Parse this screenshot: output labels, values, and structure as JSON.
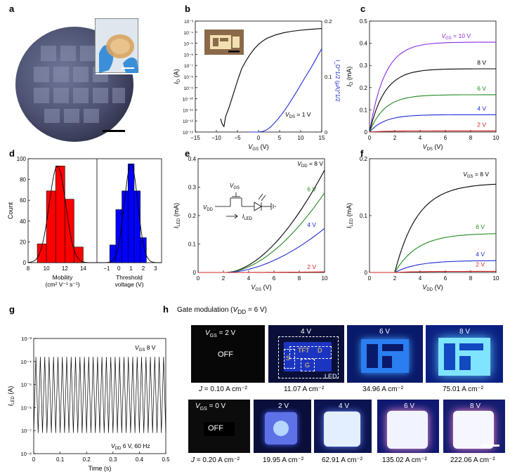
{
  "labels": {
    "a": "a",
    "b": "b",
    "c": "c",
    "d": "d",
    "e": "e",
    "f": "f",
    "g": "g",
    "h": "h"
  },
  "panel_h": {
    "title": "Gate modulation (V_DD = 6 V)",
    "title_pre": "Gate modulation (",
    "title_v": "V",
    "title_sub": "DD",
    "title_post": " = 6 V)",
    "row1": {
      "vgs_prefix": "V",
      "vgs_sub": "GS",
      "vgs_first": " = 2 V",
      "tiles": [
        "OFF",
        "4 V",
        "6 V",
        "8 V"
      ],
      "j_prefix": "J",
      "j": [
        "= 0.10 A cm⁻²",
        "11.07 A cm⁻²",
        "34.96 A cm⁻²",
        "75.01 A cm⁻²"
      ],
      "overlay": {
        "tft": "TFT",
        "d": "D",
        "s": "S",
        "g": "G",
        "led": "LED"
      }
    },
    "row2": {
      "vgs_first": " = 0 V",
      "tiles": [
        "OFF",
        "2 V",
        "4 V",
        "6 V",
        "8 V"
      ],
      "j": [
        "= 0.20 A cm⁻²",
        "19.95 A cm⁻²",
        "62.91 A cm⁻²",
        "135.02 A cm⁻²",
        "222.06 A cm⁻²"
      ]
    }
  },
  "chart_data": [
    {
      "panel": "b",
      "type": "line",
      "xlabel": "V_GS (V)",
      "ylabel": "I_D (A)",
      "ylabel2": "I_D^1/2 (µA)^1/2",
      "xlim": [
        -15,
        15
      ],
      "ylim_log": [
        -13,
        -3
      ],
      "y2lim": [
        0,
        0.2
      ],
      "xticks": [
        "−15",
        "−10",
        "−5",
        "0",
        "5",
        "10",
        "15"
      ],
      "yticks": [
        "10⁻³",
        "10⁻⁴",
        "10⁻⁵",
        "10⁻⁶",
        "10⁻⁷",
        "10⁻⁸",
        "10⁻⁹",
        "10⁻¹⁰",
        "10⁻¹¹",
        "10⁻¹²",
        "10⁻¹³"
      ],
      "y2ticks": [
        "0.2",
        "0.1",
        "0"
      ],
      "annotation": "V_DS = 1 V",
      "series": [
        {
          "name": "I_D (log)",
          "color": "#000000",
          "x": [
            -9,
            -8.6,
            -8.2,
            -7.8,
            -7,
            -6,
            -5,
            -4,
            -3,
            -2,
            -1,
            0,
            1,
            2,
            4,
            6,
            8,
            10,
            12,
            15
          ],
          "y": [
            -11.8,
            -12.3,
            -12.5,
            -11.6,
            -10.8,
            -9.6,
            -8.4,
            -7.3,
            -6.6,
            -6.0,
            -5.5,
            -5.1,
            -4.8,
            -4.55,
            -4.25,
            -4.05,
            -3.92,
            -3.82,
            -3.75,
            -3.67
          ]
        },
        {
          "name": "I_D^1/2",
          "color": "#1f2bd6",
          "x": [
            -2,
            0,
            1,
            2,
            3,
            4,
            5,
            6,
            7,
            8,
            9,
            10,
            11,
            12,
            13,
            14,
            15
          ],
          "y": [
            0,
            0,
            0.001,
            0.004,
            0.01,
            0.018,
            0.027,
            0.037,
            0.048,
            0.06,
            0.072,
            0.085,
            0.098,
            0.11,
            0.123,
            0.137,
            0.15
          ]
        }
      ]
    },
    {
      "panel": "c",
      "type": "line",
      "xlabel": "V_DS (V)",
      "ylabel": "I_D (mA)",
      "xlim": [
        0,
        10
      ],
      "ylim": [
        0,
        0.5
      ],
      "xticks": [
        "0",
        "2",
        "4",
        "6",
        "8",
        "10"
      ],
      "yticks": [
        "0",
        "0.1",
        "0.2",
        "0.3",
        "0.4",
        "0.5"
      ],
      "series": [
        {
          "name": "V_GS = 10 V",
          "label": "V_GS = 10 V",
          "color": "#8a2be2",
          "sat": 0.405
        },
        {
          "name": "8 V",
          "label": "8 V",
          "color": "#000000",
          "sat": 0.285
        },
        {
          "name": "6 V",
          "label": "6 V",
          "color": "#1f8a1f",
          "sat": 0.168
        },
        {
          "name": "4 V",
          "label": "4 V",
          "color": "#1f2bd6",
          "sat": 0.078
        },
        {
          "name": "2 V",
          "label": "2 V",
          "color": "#d62020",
          "sat": 0.005
        }
      ]
    },
    {
      "panel": "d",
      "type": "bar",
      "ylabel": "Count",
      "ylim": [
        0,
        100
      ],
      "yticks": [
        "0",
        "20",
        "40",
        "60",
        "80",
        "100"
      ],
      "left": {
        "xlabel1": "Mobility",
        "xlabel2": "(cm² V⁻¹ s⁻¹)",
        "xticks": [
          "8",
          "10",
          "12",
          "14"
        ],
        "xlim": [
          8,
          15.5
        ],
        "bins": [
          9.5,
          10.5,
          11.5,
          12.5,
          13.5
        ],
        "values": [
          18,
          69,
          93,
          61,
          15
        ],
        "color": "#ff0000"
      },
      "right": {
        "xlabel1": "Threshold",
        "xlabel2": "voltage (V)",
        "xticks": [
          "−1",
          "0",
          "1",
          "2",
          "3"
        ],
        "xlim": [
          -1.8,
          3.5
        ],
        "bins": [
          -0.5,
          0,
          0.5,
          1,
          1.5,
          2,
          2.5
        ],
        "values": [
          17,
          51,
          69,
          95,
          69,
          24,
          0
        ],
        "color": "#0000ff"
      }
    },
    {
      "panel": "e",
      "type": "line",
      "xlabel": "V_GS (V)",
      "ylabel": "I_LED (mA)",
      "xlim": [
        0,
        10
      ],
      "ylim": [
        0,
        0.4
      ],
      "xticks": [
        "0",
        "2",
        "4",
        "6",
        "8",
        "10"
      ],
      "yticks": [
        "0",
        "0.1",
        "0.2",
        "0.3",
        "0.4"
      ],
      "series": [
        {
          "name": "V_DD = 8 V",
          "label": "V_DD = 8 V",
          "color": "#000000",
          "end": 0.36
        },
        {
          "name": "6 V",
          "label": "6 V",
          "color": "#1f8a1f",
          "end": 0.28
        },
        {
          "name": "4 V",
          "label": "4 V",
          "color": "#1f2bd6",
          "end": 0.155
        },
        {
          "name": "2 V",
          "label": "2 V",
          "color": "#d62020",
          "end": 0.002
        }
      ],
      "inset": {
        "vgs": "V_GS",
        "vdd": "V_DD",
        "iled": "I_LED"
      }
    },
    {
      "panel": "f",
      "type": "line",
      "xlabel": "V_DD (V)",
      "ylabel": "I_LED (mA)",
      "xlim": [
        0,
        10
      ],
      "ylim": [
        0,
        0.2
      ],
      "xticks": [
        "0",
        "2",
        "4",
        "6",
        "8",
        "10"
      ],
      "yticks": [
        "0",
        "0.1",
        "0.2"
      ],
      "series": [
        {
          "name": "V_GS = 8 V",
          "label": "V_GS = 8 V",
          "color": "#000000",
          "sat": 0.157
        },
        {
          "name": "6 V",
          "label": "6 V",
          "color": "#1f8a1f",
          "sat": 0.069
        },
        {
          "name": "4 V",
          "label": "4 V",
          "color": "#1f2bd6",
          "sat": 0.021
        },
        {
          "name": "2 V",
          "label": "2 V",
          "color": "#d62020",
          "sat": 0.002
        }
      ]
    },
    {
      "panel": "g",
      "type": "line",
      "xlabel": "Time (s)",
      "ylabel": "I_LED (A)",
      "xlim": [
        0,
        0.5
      ],
      "ylim_log": [
        -8,
        -3
      ],
      "xticks": [
        "0",
        "0.1",
        "0.2",
        "0.3",
        "0.4",
        "0.5"
      ],
      "yticks": [
        "10⁻³",
        "10⁻⁴",
        "10⁻⁵",
        "10⁻⁶",
        "10⁻⁷",
        "10⁻⁸"
      ],
      "annotation1": "V_GS 8 V",
      "annotation2": "V_DD 6 V, 60 Hz",
      "series": [
        {
          "name": "I_LED",
          "color": "#000000",
          "freq_hz": 60,
          "high_log": -3.8,
          "low_log": -7.1
        }
      ]
    }
  ]
}
